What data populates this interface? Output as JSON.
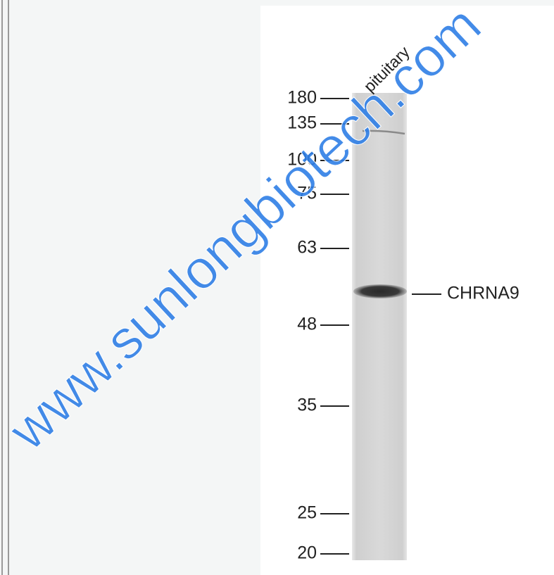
{
  "lane_label": "pituitary",
  "markers": [
    180,
    135,
    100,
    75,
    63,
    48,
    35,
    25,
    20
  ],
  "band_label": "CHRNA9",
  "watermark": "www.sunlongbiotech.com"
}
